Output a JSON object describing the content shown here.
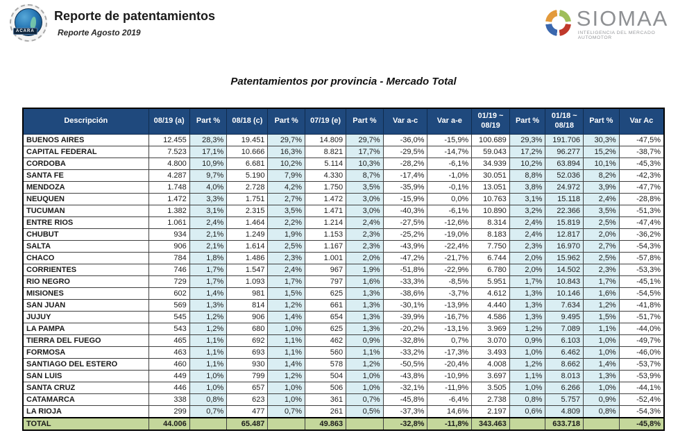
{
  "header": {
    "logo_text": "ACARA",
    "title": "Reporte de patentamientos",
    "subtitle": "Reporte Agosto 2019"
  },
  "brand": {
    "name": "SIOMAA",
    "tagline": "INTELIGENCIA DEL MERCADO AUTOMOTOR",
    "ring_colors": {
      "orange": "#E39A3B",
      "green": "#9FBE5A",
      "red": "#C0392B",
      "blue": "#3A67AE"
    }
  },
  "table": {
    "title": "Patentamientos por provincia - Mercado Total",
    "header_bg": "#1F497D",
    "part_col_bg": "#DAEEF3",
    "total_row_bg": "#C4D79B",
    "headers": [
      "Descripción",
      "08/19 (a)",
      "Part %",
      "08/18 (c)",
      "Part %",
      "07/19 (e)",
      "Part %",
      "Var a-c",
      "Var a-e",
      "01/19 ~\n08/19",
      "Part %",
      "01/18 ~\n08/18",
      "Part %",
      "Var Ac"
    ],
    "rows": [
      {
        "name": "BUENOS AIRES",
        "cells": [
          "12.455",
          "28,3%",
          "19.451",
          "29,7%",
          "14.809",
          "29,7%",
          "-36,0%",
          "-15,9%",
          "100.689",
          "29,3%",
          "191.706",
          "30,3%",
          "-47,5%"
        ]
      },
      {
        "name": "CAPITAL FEDERAL",
        "cells": [
          "7.523",
          "17,1%",
          "10.666",
          "16,3%",
          "8.821",
          "17,7%",
          "-29,5%",
          "-14,7%",
          "59.043",
          "17,2%",
          "96.277",
          "15,2%",
          "-38,7%"
        ]
      },
      {
        "name": "CORDOBA",
        "cells": [
          "4.800",
          "10,9%",
          "6.681",
          "10,2%",
          "5.114",
          "10,3%",
          "-28,2%",
          "-6,1%",
          "34.939",
          "10,2%",
          "63.894",
          "10,1%",
          "-45,3%"
        ]
      },
      {
        "name": "SANTA FE",
        "cells": [
          "4.287",
          "9,7%",
          "5.190",
          "7,9%",
          "4.330",
          "8,7%",
          "-17,4%",
          "-1,0%",
          "30.051",
          "8,8%",
          "52.036",
          "8,2%",
          "-42,3%"
        ]
      },
      {
        "name": "MENDOZA",
        "cells": [
          "1.748",
          "4,0%",
          "2.728",
          "4,2%",
          "1.750",
          "3,5%",
          "-35,9%",
          "-0,1%",
          "13.051",
          "3,8%",
          "24.972",
          "3,9%",
          "-47,7%"
        ]
      },
      {
        "name": "NEUQUEN",
        "cells": [
          "1.472",
          "3,3%",
          "1.751",
          "2,7%",
          "1.472",
          "3,0%",
          "-15,9%",
          "0,0%",
          "10.763",
          "3,1%",
          "15.118",
          "2,4%",
          "-28,8%"
        ]
      },
      {
        "name": "TUCUMAN",
        "cells": [
          "1.382",
          "3,1%",
          "2.315",
          "3,5%",
          "1.471",
          "3,0%",
          "-40,3%",
          "-6,1%",
          "10.890",
          "3,2%",
          "22.366",
          "3,5%",
          "-51,3%"
        ]
      },
      {
        "name": "ENTRE RIOS",
        "cells": [
          "1.061",
          "2,4%",
          "1.464",
          "2,2%",
          "1.214",
          "2,4%",
          "-27,5%",
          "-12,6%",
          "8.314",
          "2,4%",
          "15.819",
          "2,5%",
          "-47,4%"
        ]
      },
      {
        "name": "CHUBUT",
        "cells": [
          "934",
          "2,1%",
          "1.249",
          "1,9%",
          "1.153",
          "2,3%",
          "-25,2%",
          "-19,0%",
          "8.183",
          "2,4%",
          "12.817",
          "2,0%",
          "-36,2%"
        ]
      },
      {
        "name": "SALTA",
        "cells": [
          "906",
          "2,1%",
          "1.614",
          "2,5%",
          "1.167",
          "2,3%",
          "-43,9%",
          "-22,4%",
          "7.750",
          "2,3%",
          "16.970",
          "2,7%",
          "-54,3%"
        ]
      },
      {
        "name": "CHACO",
        "cells": [
          "784",
          "1,8%",
          "1.486",
          "2,3%",
          "1.001",
          "2,0%",
          "-47,2%",
          "-21,7%",
          "6.744",
          "2,0%",
          "15.962",
          "2,5%",
          "-57,8%"
        ]
      },
      {
        "name": "CORRIENTES",
        "cells": [
          "746",
          "1,7%",
          "1.547",
          "2,4%",
          "967",
          "1,9%",
          "-51,8%",
          "-22,9%",
          "6.780",
          "2,0%",
          "14.502",
          "2,3%",
          "-53,3%"
        ]
      },
      {
        "name": "RIO NEGRO",
        "cells": [
          "729",
          "1,7%",
          "1.093",
          "1,7%",
          "797",
          "1,6%",
          "-33,3%",
          "-8,5%",
          "5.951",
          "1,7%",
          "10.843",
          "1,7%",
          "-45,1%"
        ]
      },
      {
        "name": "MISIONES",
        "cells": [
          "602",
          "1,4%",
          "981",
          "1,5%",
          "625",
          "1,3%",
          "-38,6%",
          "-3,7%",
          "4.612",
          "1,3%",
          "10.146",
          "1,6%",
          "-54,5%"
        ]
      },
      {
        "name": "SAN JUAN",
        "cells": [
          "569",
          "1,3%",
          "814",
          "1,2%",
          "661",
          "1,3%",
          "-30,1%",
          "-13,9%",
          "4.440",
          "1,3%",
          "7.634",
          "1,2%",
          "-41,8%"
        ]
      },
      {
        "name": "JUJUY",
        "cells": [
          "545",
          "1,2%",
          "906",
          "1,4%",
          "654",
          "1,3%",
          "-39,9%",
          "-16,7%",
          "4.586",
          "1,3%",
          "9.495",
          "1,5%",
          "-51,7%"
        ]
      },
      {
        "name": "LA PAMPA",
        "cells": [
          "543",
          "1,2%",
          "680",
          "1,0%",
          "625",
          "1,3%",
          "-20,2%",
          "-13,1%",
          "3.969",
          "1,2%",
          "7.089",
          "1,1%",
          "-44,0%"
        ]
      },
      {
        "name": "TIERRA DEL FUEGO",
        "cells": [
          "465",
          "1,1%",
          "692",
          "1,1%",
          "462",
          "0,9%",
          "-32,8%",
          "0,7%",
          "3.070",
          "0,9%",
          "6.103",
          "1,0%",
          "-49,7%"
        ]
      },
      {
        "name": "FORMOSA",
        "cells": [
          "463",
          "1,1%",
          "693",
          "1,1%",
          "560",
          "1,1%",
          "-33,2%",
          "-17,3%",
          "3.493",
          "1,0%",
          "6.462",
          "1,0%",
          "-46,0%"
        ]
      },
      {
        "name": "SANTIAGO DEL ESTERO",
        "cells": [
          "460",
          "1,1%",
          "930",
          "1,4%",
          "578",
          "1,2%",
          "-50,5%",
          "-20,4%",
          "4.008",
          "1,2%",
          "8.662",
          "1,4%",
          "-53,7%"
        ]
      },
      {
        "name": "SAN LUIS",
        "cells": [
          "449",
          "1,0%",
          "799",
          "1,2%",
          "504",
          "1,0%",
          "-43,8%",
          "-10,9%",
          "3.697",
          "1,1%",
          "8.013",
          "1,3%",
          "-53,9%"
        ]
      },
      {
        "name": "SANTA CRUZ",
        "cells": [
          "446",
          "1,0%",
          "657",
          "1,0%",
          "506",
          "1,0%",
          "-32,1%",
          "-11,9%",
          "3.505",
          "1,0%",
          "6.266",
          "1,0%",
          "-44,1%"
        ]
      },
      {
        "name": "CATAMARCA",
        "cells": [
          "338",
          "0,8%",
          "623",
          "1,0%",
          "361",
          "0,7%",
          "-45,8%",
          "-6,4%",
          "2.738",
          "0,8%",
          "5.757",
          "0,9%",
          "-52,4%"
        ]
      },
      {
        "name": "LA RIOJA",
        "cells": [
          "299",
          "0,7%",
          "477",
          "0,7%",
          "261",
          "0,5%",
          "-37,3%",
          "14,6%",
          "2.197",
          "0,6%",
          "4.809",
          "0,8%",
          "-54,3%"
        ]
      }
    ],
    "total": {
      "name": "TOTAL",
      "cells": [
        "44.006",
        "",
        "65.487",
        "",
        "49.863",
        "",
        "-32,8%",
        "-11,8%",
        "343.463",
        "",
        "633.718",
        "",
        "-45,8%"
      ]
    }
  }
}
